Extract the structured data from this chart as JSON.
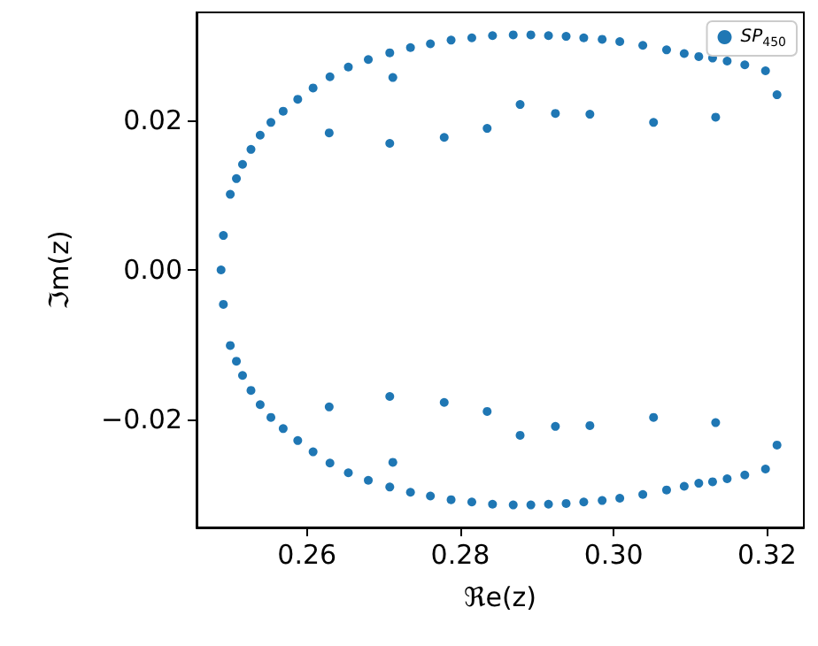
{
  "chart_data": {
    "type": "scatter",
    "xlabel": "ℜe(z)",
    "ylabel": "ℑm(z)",
    "xlim": [
      0.2456,
      0.3248
    ],
    "ylim": [
      -0.0344,
      0.0344
    ],
    "xticks": [
      0.26,
      0.28,
      {
        "value": 0.3,
        "label": "0.30"
      },
      0.32
    ],
    "yticks": [
      {
        "value": -0.02,
        "label": "−0.02"
      },
      {
        "value": 0,
        "label": "0.00"
      },
      {
        "value": 0.02,
        "label": "0.02"
      }
    ],
    "legend": "top right",
    "marker": "circle",
    "series": [
      {
        "name": "SP$_{450}$",
        "color": "#1f77b4",
        "x": [
          0.2488,
          0.2491,
          0.25,
          0.2508,
          0.2516,
          0.2527,
          0.2539,
          0.2553,
          0.2569,
          0.2588,
          0.2608,
          0.263,
          0.2654,
          0.268,
          0.2708,
          0.2735,
          0.2761,
          0.2788,
          0.2815,
          0.2842,
          0.2869,
          0.2892,
          0.2915,
          0.2938,
          0.2961,
          0.2985,
          0.3008,
          0.3038,
          0.3069,
          0.3092,
          0.3111,
          0.3129,
          0.3148,
          0.3171,
          0.3198,
          0.3213,
          0.2491,
          0.25,
          0.2508,
          0.2516,
          0.2527,
          0.2539,
          0.2553,
          0.2569,
          0.2588,
          0.2608,
          0.263,
          0.2654,
          0.268,
          0.2708,
          0.2735,
          0.2761,
          0.2788,
          0.2815,
          0.2842,
          0.2869,
          0.2892,
          0.2915,
          0.2938,
          0.2961,
          0.2985,
          0.3008,
          0.3038,
          0.3069,
          0.3092,
          0.3111,
          0.3129,
          0.3148,
          0.3171,
          0.3198,
          0.3213,
          0.2629,
          0.2712,
          0.2708,
          0.2779,
          0.2835,
          0.2878,
          0.2924,
          0.2969,
          0.3052,
          0.3133,
          0.2629,
          0.2712,
          0.2708,
          0.2779,
          0.2835,
          0.2878,
          0.2924,
          0.2969,
          0.3052,
          0.3133
        ],
        "values": [
          0,
          0.0046,
          0.0101,
          0.0122,
          0.0141,
          0.0161,
          0.018,
          0.0197,
          0.0212,
          0.0228,
          0.0243,
          0.0258,
          0.0271,
          0.0281,
          0.029,
          0.0297,
          0.0302,
          0.0307,
          0.031,
          0.0313,
          0.0314,
          0.0314,
          0.0313,
          0.0312,
          0.031,
          0.0308,
          0.0305,
          0.03,
          0.0294,
          0.0289,
          0.0285,
          0.0283,
          0.0279,
          0.0274,
          0.0266,
          0.0234,
          -0.0046,
          -0.0101,
          -0.0122,
          -0.0141,
          -0.0161,
          -0.018,
          -0.0197,
          -0.0212,
          -0.0228,
          -0.0243,
          -0.0258,
          -0.0271,
          -0.0281,
          -0.029,
          -0.0297,
          -0.0302,
          -0.0307,
          -0.031,
          -0.0313,
          -0.0314,
          -0.0314,
          -0.0313,
          -0.0312,
          -0.031,
          -0.0308,
          -0.0305,
          -0.03,
          -0.0294,
          -0.0289,
          -0.0285,
          -0.0283,
          -0.0279,
          -0.0274,
          -0.0266,
          -0.0234,
          0.0183,
          0.0257,
          0.0169,
          0.0177,
          0.0189,
          0.0221,
          0.0209,
          0.0208,
          0.0197,
          0.0204,
          -0.0183,
          -0.0257,
          -0.0169,
          -0.0177,
          -0.0189,
          -0.0221,
          -0.0209,
          -0.0208,
          -0.0197,
          -0.0204
        ]
      }
    ]
  }
}
